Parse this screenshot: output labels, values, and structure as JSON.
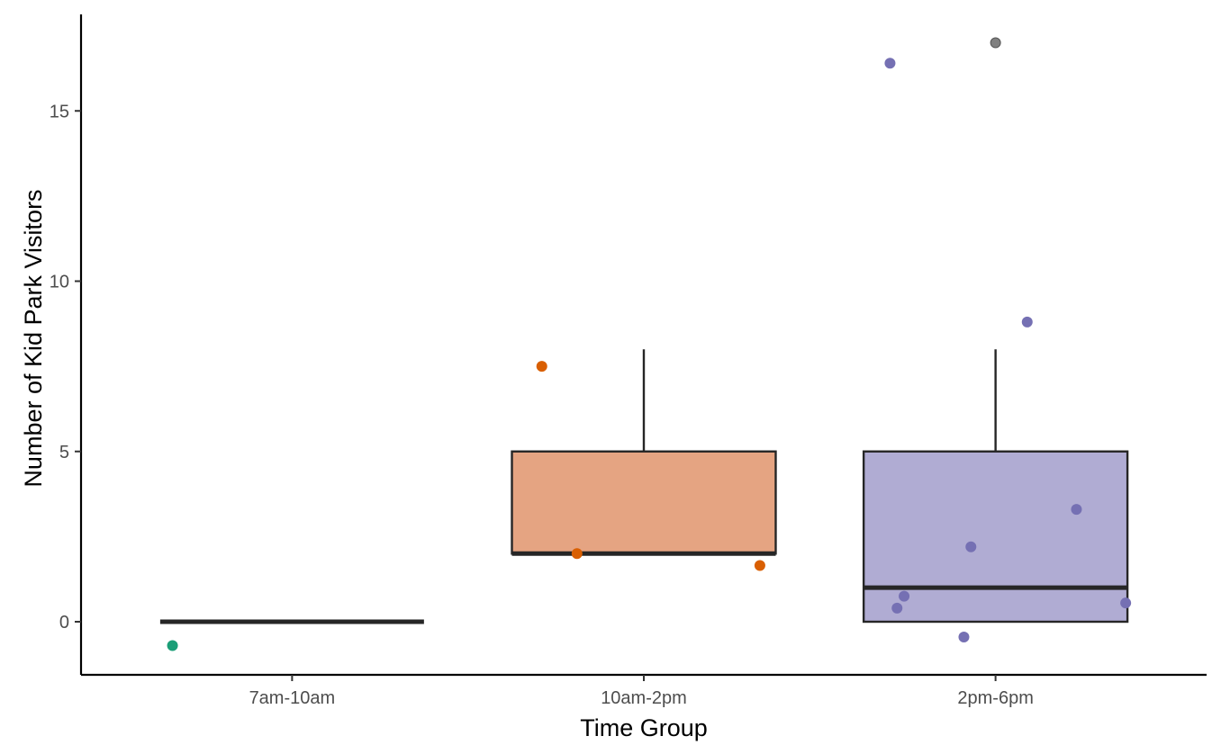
{
  "chart_data": {
    "type": "boxplot",
    "title": "",
    "xlabel": "Time Group",
    "ylabel": "Number of Kid Park Visitors",
    "ylim": [
      -1.5,
      17.7
    ],
    "y_ticks": [
      0,
      5,
      10,
      15
    ],
    "y_tick_labels": [
      "0",
      "5",
      "10",
      "15"
    ],
    "grid": false,
    "legend": "none",
    "categories": [
      "7am-10am",
      "10am-2pm",
      "2pm-6pm"
    ],
    "box_colors": [
      "#1b9e77",
      "#e5a482",
      "#b0acd3"
    ],
    "point_colors": [
      "#1b9e77",
      "#d95f02",
      "#7570b3"
    ],
    "outlier_color": "#808080",
    "boxes": [
      {
        "category": "7am-10am",
        "min": 0,
        "q1": 0,
        "median": 0,
        "q3": 0,
        "max": 0
      },
      {
        "category": "10am-2pm",
        "min": 2,
        "q1": 2,
        "median": 2,
        "q3": 5,
        "max": 8
      },
      {
        "category": "2pm-6pm",
        "min": 0,
        "q1": 0,
        "median": 1,
        "q3": 5,
        "max": 8
      }
    ],
    "outliers": [
      {
        "category": "2pm-6pm",
        "value": 17
      }
    ],
    "jitter_points": [
      {
        "category": "7am-10am",
        "x_offset": -0.34,
        "y": -0.7
      },
      {
        "category": "10am-2pm",
        "x_offset": -0.29,
        "y": 7.5
      },
      {
        "category": "10am-2pm",
        "x_offset": -0.19,
        "y": 2.0
      },
      {
        "category": "10am-2pm",
        "x_offset": 0.33,
        "y": 1.65
      },
      {
        "category": "2pm-6pm",
        "x_offset": -0.3,
        "y": 16.4
      },
      {
        "category": "2pm-6pm",
        "x_offset": 0.09,
        "y": 8.8
      },
      {
        "category": "2pm-6pm",
        "x_offset": 0.23,
        "y": 3.3
      },
      {
        "category": "2pm-6pm",
        "x_offset": -0.07,
        "y": 2.2
      },
      {
        "category": "2pm-6pm",
        "x_offset": -0.26,
        "y": 0.75
      },
      {
        "category": "2pm-6pm",
        "x_offset": -0.28,
        "y": 0.4
      },
      {
        "category": "2pm-6pm",
        "x_offset": 0.37,
        "y": 0.55
      },
      {
        "category": "2pm-6pm",
        "x_offset": -0.09,
        "y": -0.45
      }
    ]
  }
}
